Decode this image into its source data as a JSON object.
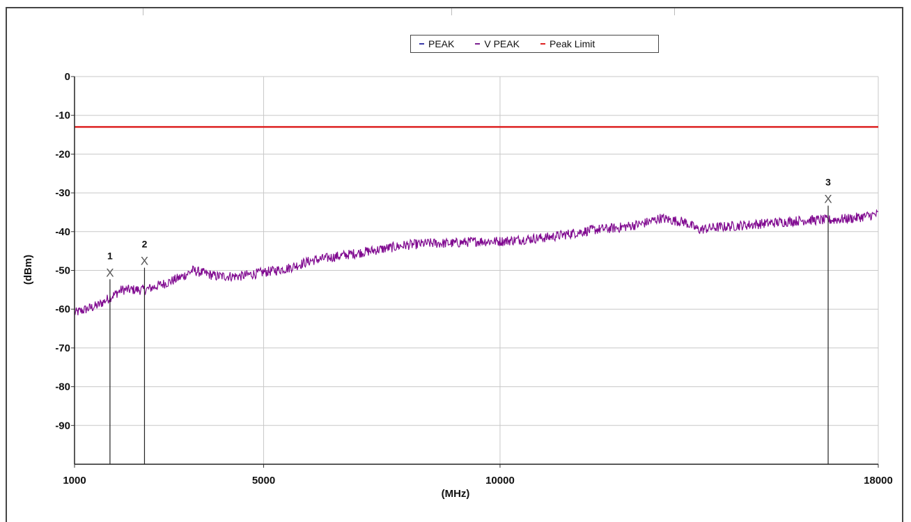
{
  "chart_data": {
    "type": "line",
    "title": "",
    "xlabel": "(MHz)",
    "ylabel": "(dBm)",
    "xlim": [
      1000,
      18000
    ],
    "ylim": [
      -100,
      0
    ],
    "x_ticks": [
      1000,
      5000,
      10000,
      18000
    ],
    "x_tick_labels": [
      "1000",
      "5000",
      "10000",
      "18000"
    ],
    "y_ticks": [
      0,
      -10,
      -20,
      -30,
      -40,
      -50,
      -60,
      -70,
      -80,
      -90
    ],
    "y_tick_labels": [
      "0",
      "-10",
      "-20",
      "-30",
      "-40",
      "-50",
      "-60",
      "-70",
      "-80",
      "-90"
    ],
    "grid": true,
    "legend_position": "top-center",
    "legend": [
      {
        "label": "PEAK",
        "color": "#3a3aa8"
      },
      {
        "label": "V PEAK",
        "color": "#7b1f8f"
      },
      {
        "label": "Peak Limit",
        "color": "#dd2222"
      }
    ],
    "series": [
      {
        "name": "V PEAK",
        "color": "#800a90",
        "x": [
          1000,
          1500,
          2000,
          2500,
          3000,
          3300,
          3500,
          4000,
          4500,
          5000,
          5500,
          6000,
          6500,
          7000,
          7500,
          8000,
          8500,
          9000,
          9500,
          10000,
          10500,
          11000,
          11500,
          12000,
          12500,
          13000,
          13400,
          13600,
          13900,
          14200,
          14500,
          15000,
          15500,
          16000,
          16500,
          17000,
          17500,
          18000
        ],
        "values": [
          -61,
          -59,
          -55,
          -55,
          -53,
          -51.5,
          -50,
          -51.5,
          -51.5,
          -50.5,
          -49.5,
          -47.5,
          -46.5,
          -45.5,
          -44.5,
          -43.5,
          -43,
          -43,
          -42.5,
          -42.5,
          -42,
          -41.5,
          -40.5,
          -39.5,
          -39,
          -38,
          -36.5,
          -37,
          -37.5,
          -39.5,
          -39,
          -38.5,
          -38,
          -37.5,
          -37,
          -37,
          -36.5,
          -35.5
        ]
      },
      {
        "name": "Peak Limit",
        "color": "#dd2222",
        "x": [
          1000,
          18000
        ],
        "values": [
          -13,
          -13
        ]
      }
    ],
    "markers": [
      {
        "label": "1",
        "x": 1750,
        "y": -50.5
      },
      {
        "label": "2",
        "x": 2480,
        "y": -47.5
      },
      {
        "label": "3",
        "x": 16940,
        "y": -31.5
      }
    ]
  }
}
